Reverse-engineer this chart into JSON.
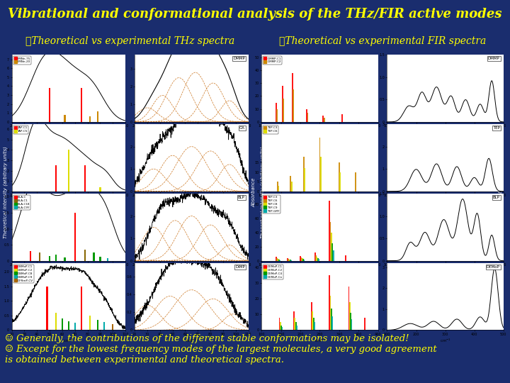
{
  "title": "Vibrational and conformational analysis of the THz/FIR active modes",
  "title_color": "#FFFF00",
  "title_fontsize": 13,
  "background_color": "#1a2d6e",
  "label_thz": "☛Theoretical vs experimental THz spectra",
  "label_fir": "☛Theoretical vs experimental FIR spectra",
  "label_color": "#FFFF00",
  "label_fontsize": 10,
  "footer_lines": [
    "☺ Generally, the contributions of the different stable conformations may be isolated!",
    "☺ Except for the lowest frequency modes of the largest molecules, a very good agreement",
    "is obtained between experimental and theoretical spectra."
  ],
  "footer_color": "#FFFF00",
  "footer_fontsize": 9.5,
  "bg_dark": "#1a2d6e",
  "panel_outer_bg": "#d8d8d8",
  "panel_white": "#ffffff"
}
